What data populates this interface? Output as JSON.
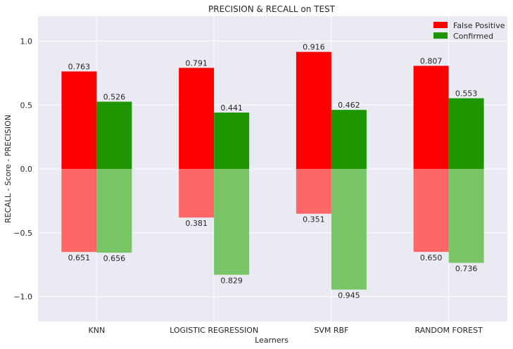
{
  "chart_data": {
    "type": "bar",
    "title": "PRECISION & RECALL on TEST",
    "xlabel": "Learners",
    "ylabel": "RECALL - Score - PRECISION",
    "ylim": [
      -1.2,
      1.2
    ],
    "yticks": [
      1.0,
      0.5,
      0.0,
      -0.5,
      -1.0
    ],
    "ytick_labels": [
      "1.0",
      "0.5",
      "0.0",
      "−0.5",
      "−1.0"
    ],
    "grid": true,
    "legend_position": "top-right",
    "categories": [
      "KNN",
      "LOGISTIC REGRESSION",
      "SVM RBF",
      "RANDOM FOREST"
    ],
    "series": [
      {
        "name": "False Positive",
        "color": "#ff0000",
        "recall_color": "#ff6666",
        "precision": [
          0.763,
          0.791,
          0.916,
          0.807
        ],
        "precision_labels": [
          "0.763",
          "0.791",
          "0.916",
          "0.807"
        ],
        "recall": [
          0.651,
          0.381,
          0.351,
          0.65
        ],
        "recall_labels": [
          "0.651",
          "0.381",
          "0.351",
          "0.650"
        ]
      },
      {
        "name": "Confirmed",
        "color": "#1e9600",
        "recall_color": "#78c466",
        "precision": [
          0.526,
          0.441,
          0.462,
          0.553
        ],
        "precision_labels": [
          "0.526",
          "0.441",
          "0.462",
          "0.553"
        ],
        "recall": [
          0.656,
          0.829,
          0.945,
          0.736
        ],
        "recall_labels": [
          "0.656",
          "0.829",
          "0.945",
          "0.736"
        ]
      }
    ],
    "plot_background": "#eaeaf2",
    "grid_color": "#ffffff"
  }
}
